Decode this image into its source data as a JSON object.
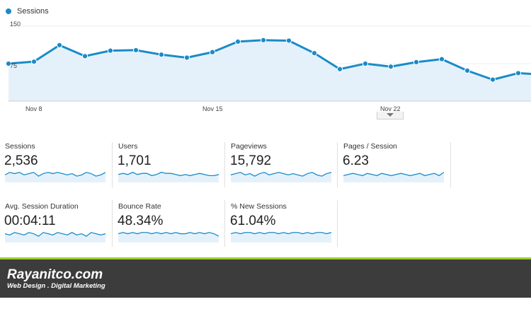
{
  "legend": {
    "label": "Sessions",
    "color": "#1a8bc9"
  },
  "chart_data": {
    "type": "area",
    "y_ticks": [
      "150",
      "75"
    ],
    "ylim": [
      0,
      150
    ],
    "x_tick_labels": [
      "Nov 8",
      "Nov 15",
      "Nov 22"
    ],
    "values": [
      75,
      79,
      112,
      90,
      101,
      102,
      93,
      87,
      98,
      119,
      122,
      121,
      96,
      64,
      75,
      69,
      78,
      84,
      61,
      43,
      56,
      53
    ],
    "grid": false
  },
  "metrics": [
    {
      "label": "Sessions",
      "value": "2,536",
      "sparkline": [
        6,
        8,
        7,
        8,
        6,
        7,
        8,
        5,
        7,
        8,
        7,
        8,
        7,
        6,
        7,
        5,
        6,
        8,
        7,
        5,
        6,
        8
      ]
    },
    {
      "label": "Users",
      "value": "1,701",
      "sparkline": [
        7,
        8,
        7,
        9,
        7,
        8,
        8,
        6,
        7,
        9,
        8,
        8,
        7,
        6,
        7,
        6,
        7,
        8,
        7,
        6,
        6,
        7
      ]
    },
    {
      "label": "Pageviews",
      "value": "15,792",
      "sparkline": [
        6,
        7,
        8,
        6,
        7,
        5,
        7,
        8,
        6,
        7,
        8,
        7,
        6,
        7,
        6,
        5,
        7,
        8,
        6,
        5,
        7,
        8
      ]
    },
    {
      "label": "Pages / Session",
      "value": "6.23",
      "sparkline": [
        6,
        7,
        8,
        7,
        6,
        8,
        7,
        6,
        8,
        7,
        6,
        7,
        8,
        7,
        6,
        7,
        8,
        6,
        7,
        8,
        6,
        9
      ]
    },
    {
      "label": "Avg. Session Duration",
      "value": "00:04:11",
      "sparkline": [
        7,
        6,
        8,
        7,
        6,
        8,
        7,
        5,
        8,
        7,
        6,
        8,
        7,
        6,
        8,
        6,
        7,
        5,
        8,
        7,
        6,
        7
      ]
    },
    {
      "label": "Bounce Rate",
      "value": "48.34%",
      "sparkline": [
        7,
        8,
        7,
        8,
        7,
        8,
        8,
        7,
        8,
        7,
        8,
        7,
        8,
        7,
        7,
        8,
        7,
        8,
        7,
        8,
        7,
        5
      ]
    },
    {
      "label": "% New Sessions",
      "value": "61.04%",
      "sparkline": [
        7,
        8,
        7,
        8,
        8,
        7,
        8,
        7,
        8,
        8,
        7,
        8,
        7,
        8,
        8,
        7,
        8,
        7,
        8,
        8,
        7,
        8
      ]
    }
  ],
  "footer": {
    "brand": "Rayanitco.com",
    "tagline": "Web Design . Digital Marketing",
    "bg_color": "#3c3c3c",
    "accent_color": "#9acd32"
  }
}
